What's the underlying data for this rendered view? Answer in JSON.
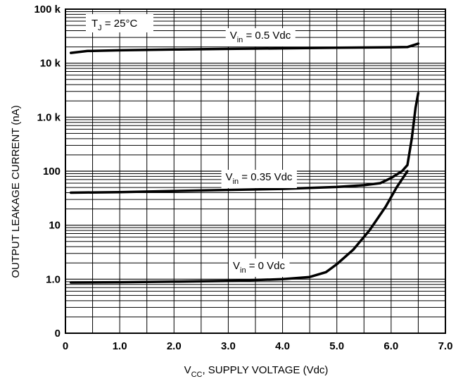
{
  "chart_data": {
    "type": "line",
    "xlabel": {
      "main": "V",
      "sub": "CC",
      "rest": ", SUPPLY VOLTAGE (Vdc)"
    },
    "ylabel": "OUTPUT LEAKAGE CURRENT (nA)",
    "scale": {
      "x": "linear",
      "y": "log"
    },
    "xlim": [
      0,
      7.0
    ],
    "ylim": [
      0.1,
      100000
    ],
    "grid": true,
    "x_ticks": [
      {
        "value": 0,
        "label": "0"
      },
      {
        "value": 1,
        "label": "1.0"
      },
      {
        "value": 2,
        "label": "2.0"
      },
      {
        "value": 3,
        "label": "3.0"
      },
      {
        "value": 4,
        "label": "4.0"
      },
      {
        "value": 5,
        "label": "5.0"
      },
      {
        "value": 6,
        "label": "6.0"
      },
      {
        "value": 7,
        "label": "7.0"
      }
    ],
    "y_ticks": [
      {
        "value": 0.1,
        "label": "0"
      },
      {
        "value": 1,
        "label": "1.0"
      },
      {
        "value": 10,
        "label": "10"
      },
      {
        "value": 100,
        "label": "100"
      },
      {
        "value": 1000,
        "label": "1.0 k"
      },
      {
        "value": 10000,
        "label": "10 k"
      },
      {
        "value": 100000,
        "label": "100 k"
      }
    ],
    "annotation": {
      "main": "T",
      "sub": "J",
      "rest": " = 25°C"
    },
    "series": [
      {
        "name": {
          "main": "V",
          "sub": "in",
          "rest": " = 0.5 Vdc"
        },
        "x": [
          0.1,
          0.4,
          1.0,
          2.0,
          3.0,
          4.0,
          5.0,
          6.0,
          6.3,
          6.5
        ],
        "y": [
          15500,
          16800,
          17300,
          17900,
          18400,
          18800,
          19300,
          19700,
          19900,
          23000
        ]
      },
      {
        "name": {
          "main": "V",
          "sub": "in",
          "rest": " = 0.35 Vdc"
        },
        "x": [
          0.1,
          1.0,
          2.0,
          3.0,
          4.0,
          5.0,
          5.5,
          5.8,
          6.0,
          6.2,
          6.3,
          6.38,
          6.45,
          6.5
        ],
        "y": [
          40,
          41,
          43,
          45,
          47,
          51,
          55,
          60,
          75,
          100,
          130,
          400,
          1500,
          2800
        ]
      },
      {
        "name": {
          "main": "V",
          "sub": "in",
          "rest": " = 0 Vdc"
        },
        "x": [
          0.1,
          1.0,
          2.0,
          3.0,
          4.0,
          4.5,
          4.8,
          5.0,
          5.3,
          5.6,
          5.9,
          6.1,
          6.3
        ],
        "y": [
          0.87,
          0.88,
          0.9,
          0.93,
          1.0,
          1.1,
          1.35,
          1.9,
          3.5,
          8,
          22,
          50,
          100
        ]
      }
    ]
  }
}
